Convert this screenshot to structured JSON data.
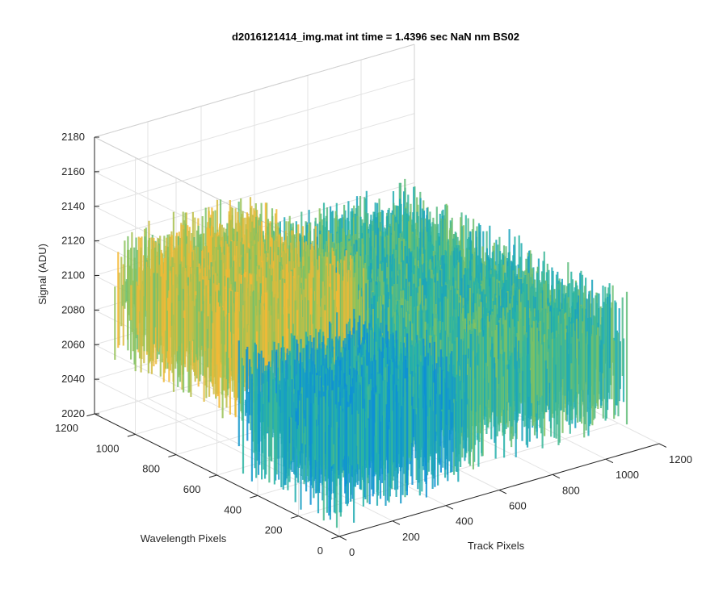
{
  "chart_data": {
    "type": "surface3d",
    "title": "d2016121414_img.mat int time = 1.4396 sec  NaN nm BS02",
    "xlabel": "Track Pixels",
    "ylabel": "Wavelength Pixels",
    "zlabel": "Signal (ADU)",
    "xlim": [
      0,
      1200
    ],
    "ylim": [
      0,
      1200
    ],
    "zlim": [
      2020,
      2180
    ],
    "xticks": [
      "0",
      "200",
      "400",
      "600",
      "800",
      "1000",
      "1200"
    ],
    "yticks": [
      "0",
      "200",
      "400",
      "600",
      "800",
      "1000",
      "1200"
    ],
    "zticks": [
      "2020",
      "2040",
      "2060",
      "2080",
      "2100",
      "2120",
      "2140",
      "2160",
      "2180"
    ],
    "grid": true,
    "colormap": "parula",
    "colors": {
      "low": "#0d8fd6",
      "mid": "#27b4a6",
      "midhigh": "#8cc35a",
      "high": "#f5b935"
    },
    "surface": {
      "x_extent": [
        0,
        1100
      ],
      "y_extent": [
        0,
        1100
      ],
      "baseline_signal": 2090,
      "noise_amplitude": 25,
      "regions": [
        {
          "x": [
            0,
            500
          ],
          "y": [
            500,
            1100
          ],
          "mean_signal": 2110
        },
        {
          "x": [
            500,
            1100
          ],
          "y": [
            0,
            1100
          ],
          "mean_signal": 2090
        },
        {
          "x": [
            0,
            500
          ],
          "y": [
            0,
            500
          ],
          "mean_signal": 2080
        }
      ]
    }
  }
}
